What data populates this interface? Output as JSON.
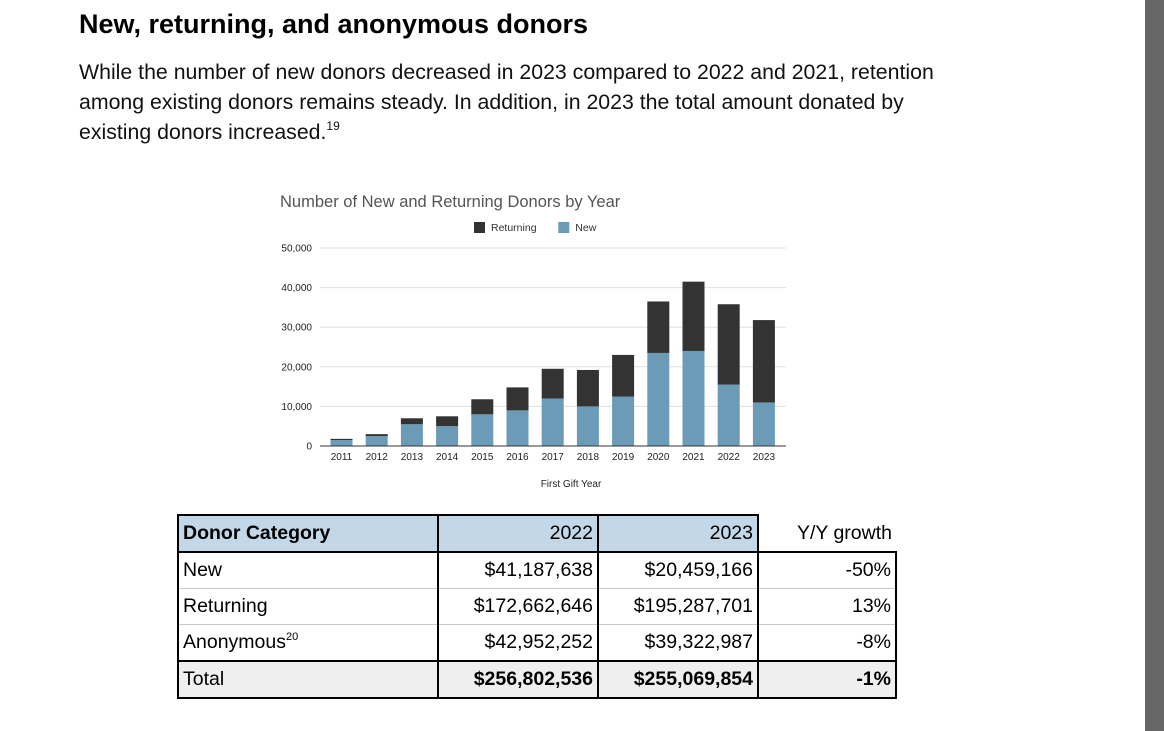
{
  "title": "New, returning, and anonymous donors",
  "intro": {
    "text": "While the number of new donors decreased in 2023 compared to 2022 and 2021, retention among existing donors remains steady. In addition, in 2023 the total amount donated by existing donors increased.",
    "footnote": "19"
  },
  "chart_data": {
    "type": "bar",
    "stacked": true,
    "title": "Number of New and Returning Donors by Year",
    "xlabel": "First Gift Year",
    "ylabel": "",
    "ylim": [
      0,
      50000
    ],
    "yticks": [
      0,
      10000,
      20000,
      30000,
      40000,
      50000
    ],
    "ytick_labels": [
      "0",
      "10,000",
      "20,000",
      "30,000",
      "40,000",
      "50,000"
    ],
    "categories": [
      "2011",
      "2012",
      "2013",
      "2014",
      "2015",
      "2016",
      "2017",
      "2018",
      "2019",
      "2020",
      "2021",
      "2022",
      "2023"
    ],
    "series": [
      {
        "name": "New",
        "color": "#6b9bb7",
        "values": [
          1500,
          2500,
          5500,
          5000,
          8000,
          9000,
          12000,
          10000,
          12500,
          23500,
          24000,
          15500,
          11000
        ]
      },
      {
        "name": "Returning",
        "color": "#333333",
        "values": [
          300,
          500,
          1500,
          2500,
          3800,
          5800,
          7500,
          9200,
          10500,
          13000,
          17500,
          20300,
          20800
        ]
      }
    ],
    "legend": [
      {
        "name": "Returning",
        "color": "#333333"
      },
      {
        "name": "New",
        "color": "#6b9bb7"
      }
    ],
    "legend_position": "top-center",
    "grid": true
  },
  "table": {
    "headers": [
      "Donor Category",
      "2022",
      "2023",
      "Y/Y growth"
    ],
    "rows": [
      {
        "category": "New",
        "footnote": "",
        "y2022": "$41,187,638",
        "y2023": "$20,459,166",
        "growth": "-50%"
      },
      {
        "category": "Returning",
        "footnote": "",
        "y2022": "$172,662,646",
        "y2023": "$195,287,701",
        "growth": "13%"
      },
      {
        "category": "Anonymous",
        "footnote": "20",
        "y2022": "$42,952,252",
        "y2023": "$39,322,987",
        "growth": "-8%"
      }
    ],
    "total": {
      "category": "Total",
      "y2022": "$256,802,536",
      "y2023": "$255,069,854",
      "growth": "-1%"
    }
  }
}
